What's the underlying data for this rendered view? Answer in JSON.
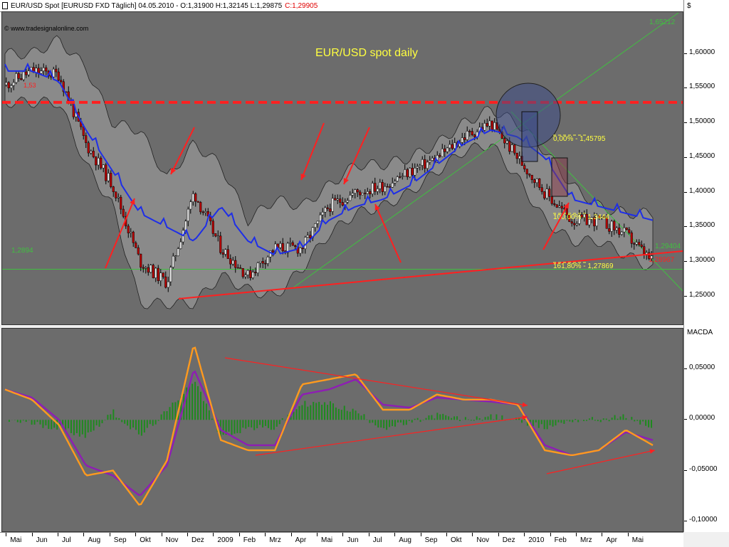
{
  "header": {
    "symbol_text": "EUR/USD Spot [EURUSD FXD  Täglich] 04.05.2010 - O:1,31900 H:1,32145 L:1,29875",
    "close_text": "C:1,29905"
  },
  "watermark": "© www.tradesignalonline.com",
  "chart_title": "EUR/USD spot daily",
  "colors": {
    "panel_bg": "#6c6c6c",
    "candle_up": "#f0f0f0",
    "candle_down": "#c00000",
    "bollinger_fill": "#8a8a8a",
    "midline": "#1e2ee8",
    "resistance": "#ff2020",
    "macd": "#ff9a1e",
    "signal": "#8e1eb4",
    "histogram": "#1e8a1e",
    "annotation_text": "#ffff40",
    "green_line": "#40c040"
  },
  "price_axis": {
    "currency_symbol": "$",
    "ticks": [
      "1,60000",
      "1,55000",
      "1,50000",
      "1,45000",
      "1,40000",
      "1,35000",
      "1,30000",
      "1,25000"
    ]
  },
  "macd_axis": {
    "title": "MACDA",
    "ticks": [
      "0,05000",
      "0,00000",
      "-0,05000",
      "-0,10000"
    ]
  },
  "time_axis": {
    "labels": [
      "Mai",
      "Jun",
      "Jul",
      "Aug",
      "Sep",
      "Okt",
      "Nov",
      "Dez",
      "2009",
      "Feb",
      "Mrz",
      "Apr",
      "Mai",
      "Jun",
      "Jul",
      "Aug",
      "Sep",
      "Okt",
      "Nov",
      "Dez",
      "2010",
      "Feb",
      "Mrz",
      "Apr",
      "Mai"
    ]
  },
  "annotations": {
    "line_165": "1,65212",
    "level_12894": "1,2894",
    "fib_0": "0,00% - 1,45795",
    "fib_100": "100,00% - 1,3444",
    "fib_161": "161,80% - 1,27869",
    "last_price": "1,29404",
    "lower_price": "1,28967",
    "resistance_label": "1,53"
  },
  "chart_data": [
    {
      "type": "candlestick",
      "title": "EUR/USD spot daily",
      "ylim": [
        1.21,
        1.66
      ],
      "x": [
        "2008-05",
        "2008-06",
        "2008-07",
        "2008-08",
        "2008-09",
        "2008-10",
        "2008-11",
        "2008-12",
        "2009-01",
        "2009-02",
        "2009-03",
        "2009-04",
        "2009-05",
        "2009-06",
        "2009-07",
        "2009-08",
        "2009-09",
        "2009-10",
        "2009-11",
        "2009-12",
        "2010-01",
        "2010-02",
        "2010-03",
        "2010-04",
        "2010-05"
      ],
      "close": [
        1.555,
        1.575,
        1.57,
        1.47,
        1.41,
        1.3,
        1.27,
        1.4,
        1.32,
        1.28,
        1.32,
        1.32,
        1.38,
        1.4,
        1.41,
        1.43,
        1.45,
        1.48,
        1.5,
        1.45,
        1.4,
        1.36,
        1.36,
        1.34,
        1.299
      ],
      "bollinger_upper": [
        1.6,
        1.6,
        1.62,
        1.58,
        1.5,
        1.49,
        1.42,
        1.47,
        1.44,
        1.36,
        1.39,
        1.38,
        1.41,
        1.44,
        1.44,
        1.45,
        1.47,
        1.5,
        1.52,
        1.5,
        1.46,
        1.41,
        1.38,
        1.37,
        1.37
      ],
      "bollinger_lower": [
        1.53,
        1.53,
        1.53,
        1.44,
        1.38,
        1.24,
        1.24,
        1.24,
        1.28,
        1.26,
        1.25,
        1.29,
        1.34,
        1.37,
        1.38,
        1.4,
        1.43,
        1.46,
        1.47,
        1.42,
        1.36,
        1.33,
        1.33,
        1.31,
        1.29
      ],
      "midline": [
        1.575,
        1.575,
        1.56,
        1.49,
        1.43,
        1.37,
        1.35,
        1.33,
        1.38,
        1.33,
        1.31,
        1.32,
        1.36,
        1.38,
        1.39,
        1.41,
        1.44,
        1.47,
        1.49,
        1.48,
        1.45,
        1.39,
        1.38,
        1.37,
        1.36
      ],
      "horizontal_levels": [
        1.53,
        1.2894
      ],
      "fibonacci": [
        {
          "label": "0,00%",
          "value": 1.45795
        },
        {
          "label": "100,00%",
          "value": 1.3444
        },
        {
          "label": "161,80%",
          "value": 1.27869
        }
      ]
    },
    {
      "type": "line",
      "title": "MACDA",
      "ylim": [
        -0.11,
        0.09
      ],
      "x": [
        "2008-05",
        "2008-06",
        "2008-07",
        "2008-08",
        "2008-09",
        "2008-10",
        "2008-11",
        "2008-12",
        "2009-01",
        "2009-02",
        "2009-03",
        "2009-04",
        "2009-05",
        "2009-06",
        "2009-07",
        "2009-08",
        "2009-09",
        "2009-10",
        "2009-11",
        "2009-12",
        "2010-01",
        "2010-02",
        "2010-03",
        "2010-04",
        "2010-05"
      ],
      "series": [
        {
          "values": [
            0.03,
            0.02,
            -0.005,
            -0.055,
            -0.05,
            -0.085,
            -0.04,
            0.075,
            -0.02,
            -0.03,
            -0.03,
            0.035,
            0.04,
            0.045,
            0.01,
            0.01,
            0.025,
            0.02,
            0.02,
            0.015,
            -0.03,
            -0.035,
            -0.03,
            -0.01,
            -0.025
          ]
        },
        {
          "values": [
            0.03,
            0.022,
            0.0,
            -0.045,
            -0.055,
            -0.075,
            -0.045,
            0.05,
            -0.01,
            -0.025,
            -0.025,
            0.025,
            0.03,
            0.04,
            0.015,
            0.012,
            0.022,
            0.02,
            0.018,
            0.015,
            -0.025,
            -0.035,
            -0.03,
            -0.012,
            -0.02
          ]
        }
      ],
      "histogram": "MACD minus signal"
    }
  ]
}
